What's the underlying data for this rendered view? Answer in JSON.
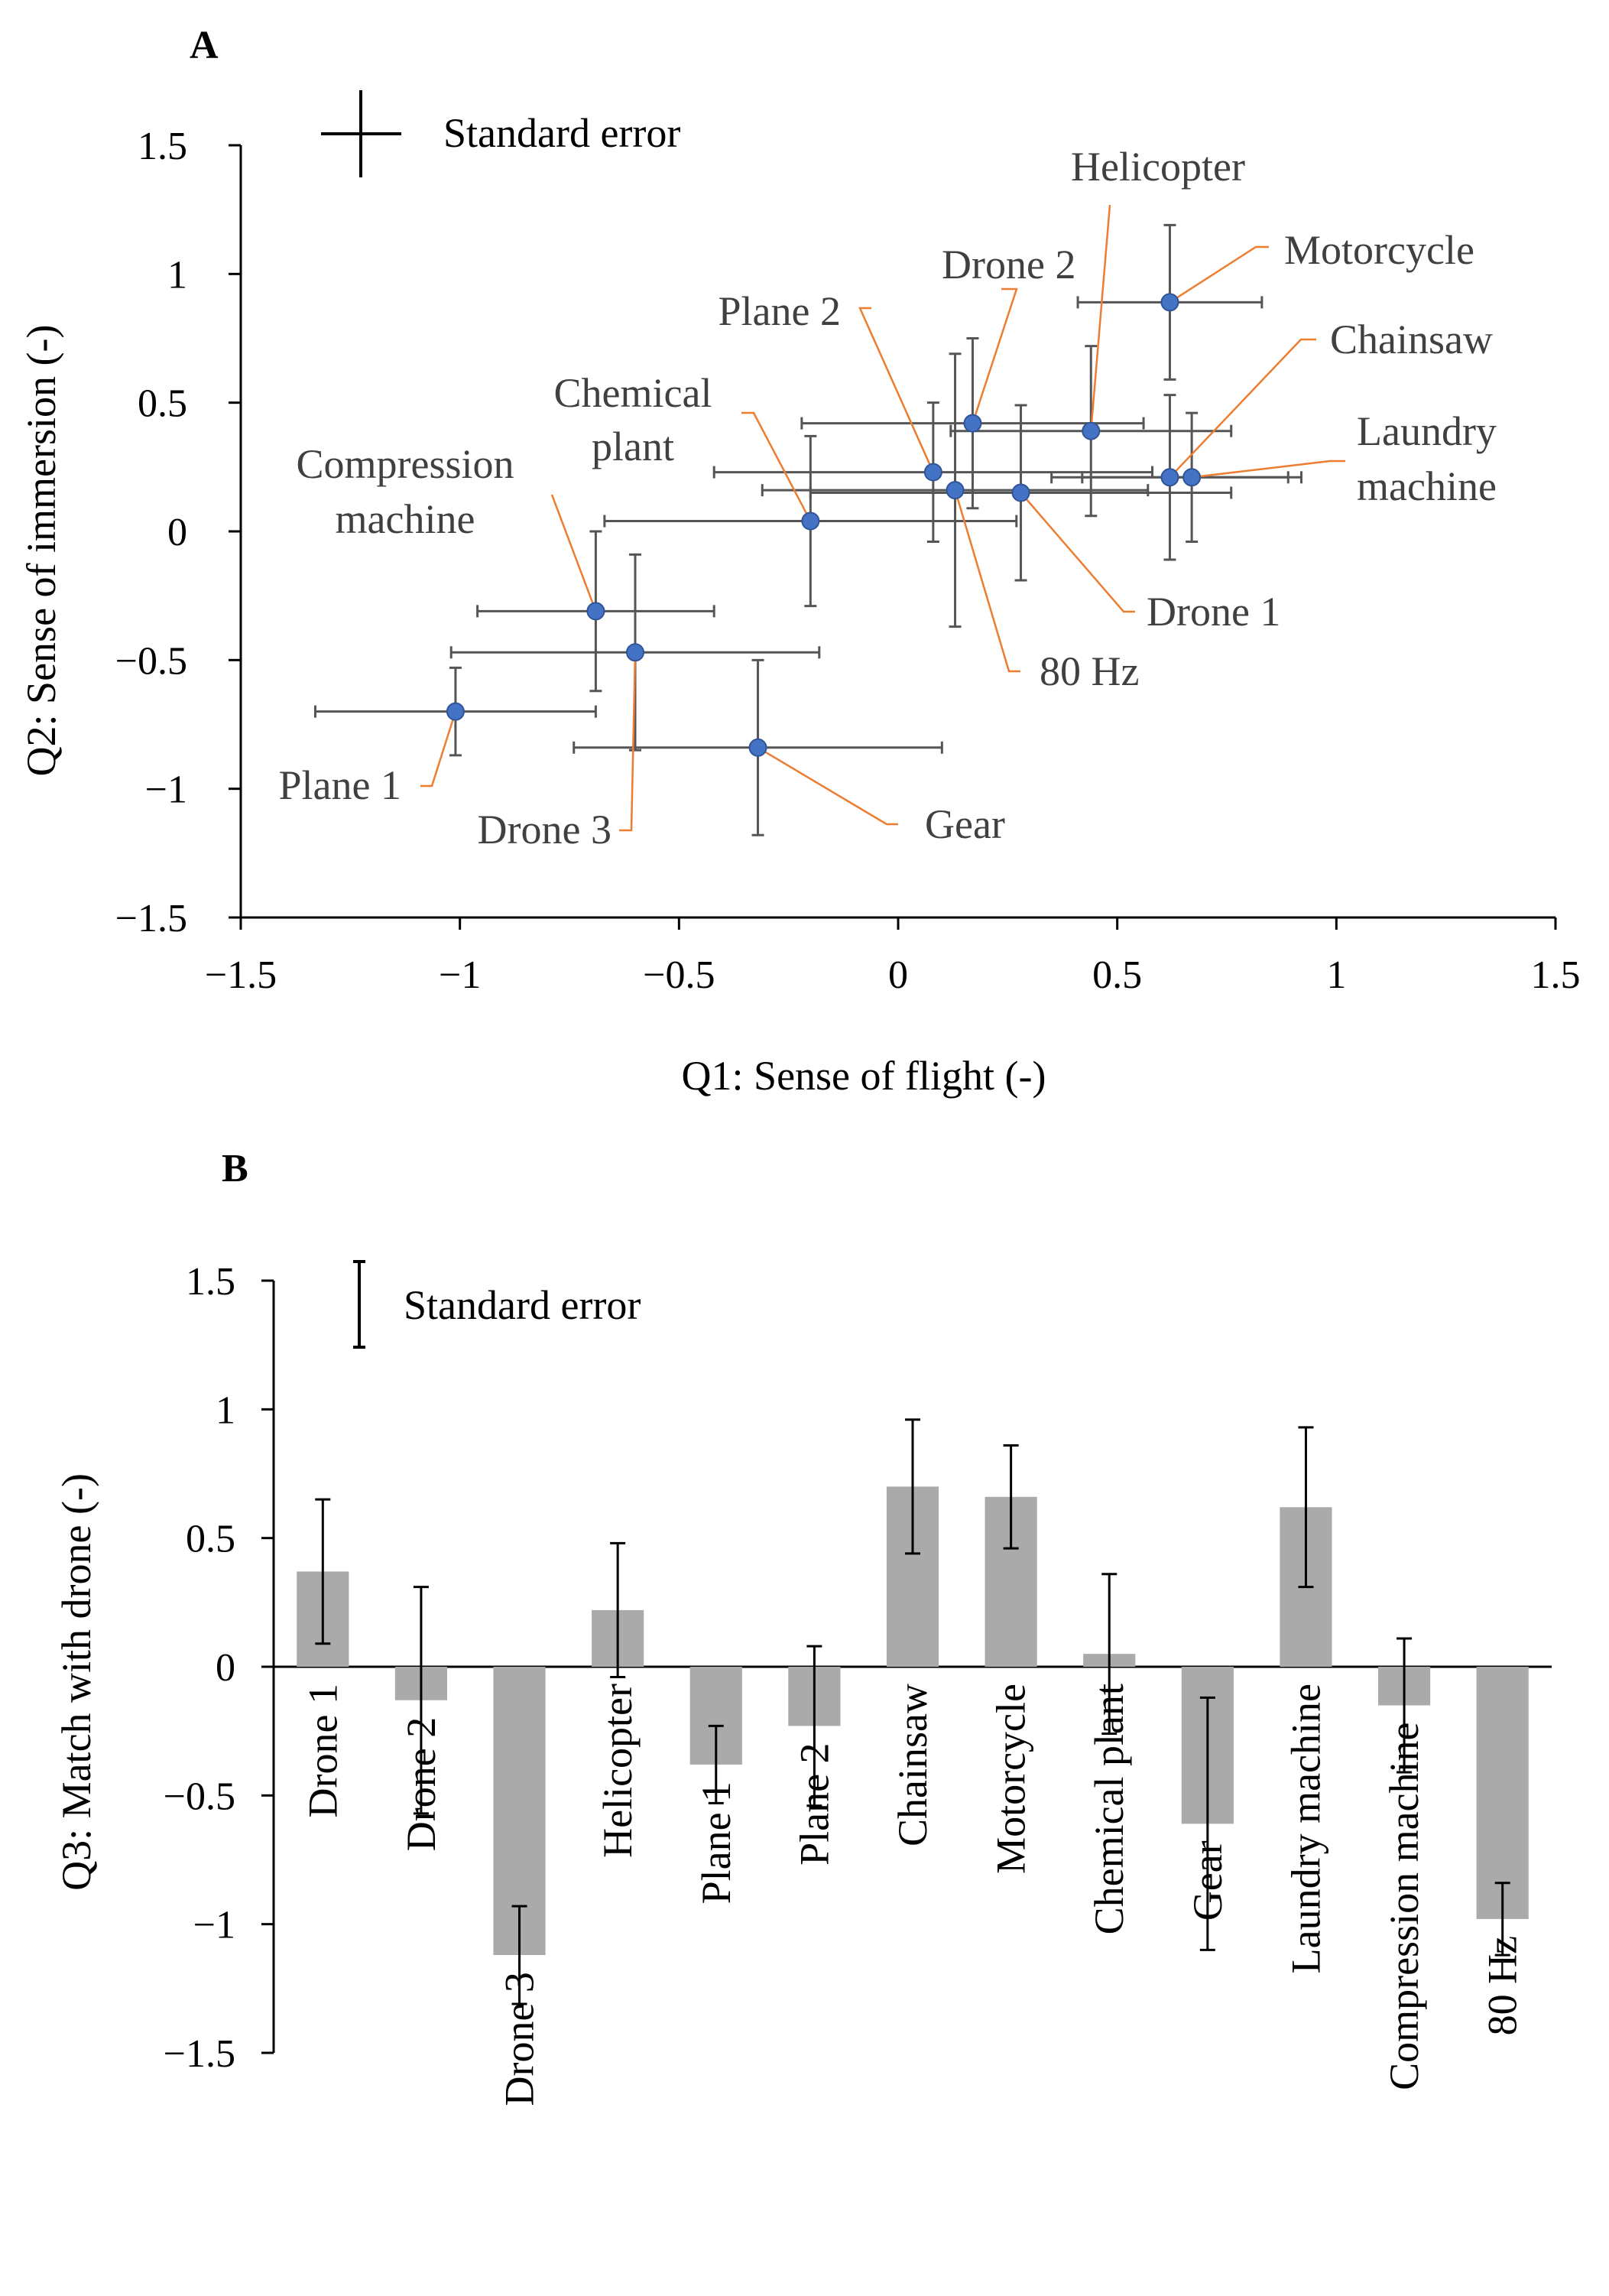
{
  "chart_data": [
    {
      "panel": "A",
      "type": "scatter",
      "xlabel": "Q1: Sense of flight (-)",
      "ylabel": "Q2: Sense of immersion (-)",
      "xlim": [
        -1.5,
        1.5
      ],
      "ylim": [
        -1.5,
        1.5
      ],
      "xticks": [
        "−1.5",
        "−1",
        "−0.5",
        "0",
        "0.5",
        "1",
        "1.5"
      ],
      "yticks": [
        "1.5",
        "1",
        "0.5",
        "0",
        "−0.5",
        "−1",
        "−1.5"
      ],
      "legend": "Standard error",
      "points": [
        {
          "name": "Drone 1",
          "x": 0.28,
          "y": 0.15,
          "xerr": 0.48,
          "yerr": 0.34
        },
        {
          "name": "Drone 2",
          "x": 0.17,
          "y": 0.42,
          "xerr": 0.39,
          "yerr": 0.33
        },
        {
          "name": "Drone 3",
          "x": -0.6,
          "y": -0.47,
          "xerr": 0.42,
          "yerr": 0.38
        },
        {
          "name": "Helicopter",
          "x": 0.44,
          "y": 0.39,
          "xerr": 0.32,
          "yerr": 0.33
        },
        {
          "name": "Plane 1",
          "x": -1.01,
          "y": -0.7,
          "xerr": 0.32,
          "yerr": 0.17
        },
        {
          "name": "Plane 2",
          "x": 0.08,
          "y": 0.23,
          "xerr": 0.5,
          "yerr": 0.27
        },
        {
          "name": "Chainsaw",
          "x": 0.62,
          "y": 0.21,
          "xerr": 0.27,
          "yerr": 0.32
        },
        {
          "name": "Motorcycle",
          "x": 0.62,
          "y": 0.89,
          "xerr": 0.21,
          "yerr": 0.3
        },
        {
          "name": "Chemical plant",
          "x": -0.2,
          "y": 0.04,
          "xerr": 0.47,
          "yerr": 0.33
        },
        {
          "name": "Gear",
          "x": -0.32,
          "y": -0.84,
          "xerr": 0.42,
          "yerr": 0.34
        },
        {
          "name": "Laundry machine",
          "x": 0.67,
          "y": 0.21,
          "xerr": 0.25,
          "yerr": 0.25
        },
        {
          "name": "Compression machine",
          "x": -0.69,
          "y": -0.31,
          "xerr": 0.27,
          "yerr": 0.31
        },
        {
          "name": "80 Hz",
          "x": 0.13,
          "y": 0.16,
          "xerr": 0.44,
          "yerr": 0.53
        }
      ],
      "annotations": [
        {
          "id": "drone1",
          "lines": [
            "Drone 1"
          ]
        },
        {
          "id": "drone2",
          "lines": [
            "Drone 2"
          ]
        },
        {
          "id": "drone3",
          "lines": [
            "Drone 3"
          ]
        },
        {
          "id": "helicopter",
          "lines": [
            "Helicopter"
          ]
        },
        {
          "id": "plane1",
          "lines": [
            "Plane 1"
          ]
        },
        {
          "id": "plane2",
          "lines": [
            "Plane 2"
          ]
        },
        {
          "id": "chainsaw",
          "lines": [
            "Chainsaw"
          ]
        },
        {
          "id": "motorcycle",
          "lines": [
            "Motorcycle"
          ]
        },
        {
          "id": "chemical",
          "lines": [
            "Chemical",
            "plant"
          ]
        },
        {
          "id": "gear",
          "lines": [
            "Gear"
          ]
        },
        {
          "id": "laundry",
          "lines": [
            "Laundry",
            "machine"
          ]
        },
        {
          "id": "compression",
          "lines": [
            "Compression",
            "machine"
          ]
        },
        {
          "id": "hz80",
          "lines": [
            "80 Hz"
          ]
        }
      ]
    },
    {
      "panel": "B",
      "type": "bar",
      "ylabel": "Q3: Match with drone (-)",
      "ylim": [
        -1.5,
        1.5
      ],
      "yticks": [
        "1.5",
        "1",
        "0.5",
        "0",
        "−0.5",
        "−1",
        "−1.5"
      ],
      "legend": "Standard error",
      "categories": [
        "Drone 1",
        "Drone 2",
        "Drone 3",
        "Helicopter",
        "Plane 1",
        "Plane 2",
        "Chainsaw",
        "Motorcycle",
        "Chemical plant",
        "Gear",
        "Laundry machine",
        "Compression machine",
        "80 Hz"
      ],
      "values": [
        0.37,
        -0.13,
        -1.12,
        0.22,
        -0.38,
        -0.23,
        0.7,
        0.66,
        0.05,
        -0.61,
        0.62,
        -0.15,
        -0.98
      ],
      "errors": [
        0.28,
        0.44,
        0.19,
        0.26,
        0.15,
        0.31,
        0.26,
        0.2,
        0.31,
        0.49,
        0.31,
        0.26,
        0.14
      ]
    }
  ],
  "colors": {
    "marker": "#4472c4",
    "marker_edge": "#2f5597",
    "leader": "#ed7d31",
    "errorbar_a": "#555555",
    "bar": "#aaaaaa",
    "errorbar_b": "#000000",
    "axis": "#000000"
  }
}
